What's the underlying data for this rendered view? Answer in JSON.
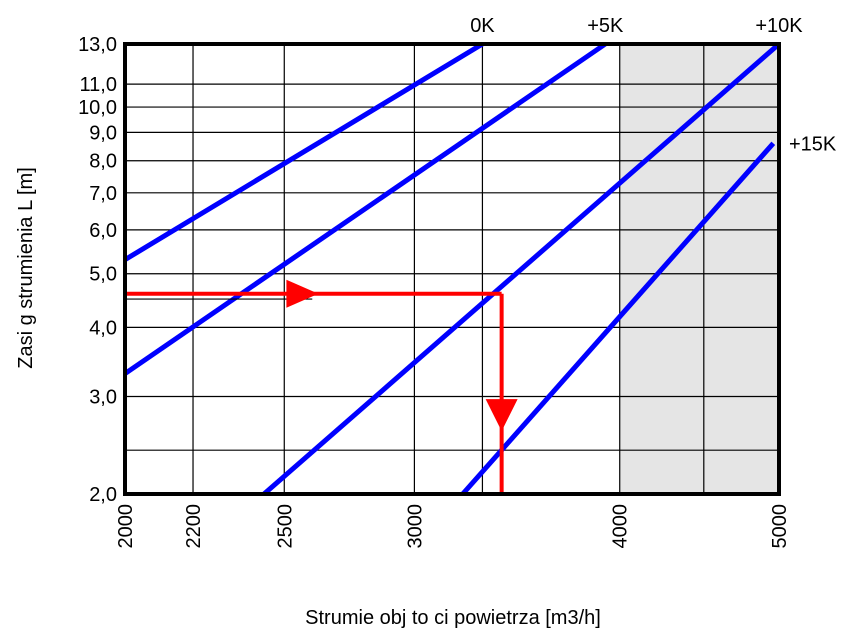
{
  "chart_data": {
    "type": "line",
    "xlabel": "Strumie   obj  to  ci powietrza [m3/h]",
    "ylabel": "Zasi  g strumienia L [m]",
    "xscale": "log",
    "yscale": "log",
    "xlim": [
      2000,
      5000
    ],
    "ylim": [
      2.0,
      13.0
    ],
    "grid": true,
    "x_ticks": [
      "2000",
      "2200",
      "2500",
      "3000",
      "4000",
      "5000"
    ],
    "x_grid": [
      2000,
      2200,
      2500,
      3000,
      3300,
      4000,
      4500,
      5000
    ],
    "y_ticks": [
      "2,0",
      "3,0",
      "4,0",
      "5,0",
      "6,0",
      "7,0",
      "8,0",
      "9,0",
      "10,0",
      "11,0",
      "13,0"
    ],
    "y_grid": [
      2.0,
      2.4,
      3.0,
      4.0,
      5.0,
      6.0,
      7.0,
      8.0,
      9.0,
      10.0,
      11.0,
      13.0
    ],
    "shaded_region": {
      "x_from": 4000,
      "x_to": 5000,
      "color": "#e5e5e5"
    },
    "series": [
      {
        "name": "0K",
        "points": [
          [
            2000,
            5.3
          ],
          [
            3300,
            13.0
          ]
        ]
      },
      {
        "name": "+5K",
        "points": [
          [
            2000,
            3.3
          ],
          [
            3920,
            13.0
          ]
        ]
      },
      {
        "name": "+10K",
        "points": [
          [
            2430,
            2.0
          ],
          [
            5000,
            13.0
          ]
        ]
      },
      {
        "name": "+15K",
        "points": [
          [
            3210,
            2.0
          ],
          [
            4960,
            8.6
          ]
        ]
      }
    ],
    "series_color": "#0000ff",
    "example": {
      "color": "#ff0000",
      "horizontal": {
        "from": [
          2000,
          4.6
        ],
        "to": [
          3390,
          4.6
        ]
      },
      "vertical": {
        "from": [
          3390,
          4.6
        ],
        "to": [
          3390,
          2.0
        ]
      },
      "ref_line": {
        "from": [
          2000,
          4.5
        ],
        "to": [
          2600,
          4.5
        ]
      }
    }
  }
}
